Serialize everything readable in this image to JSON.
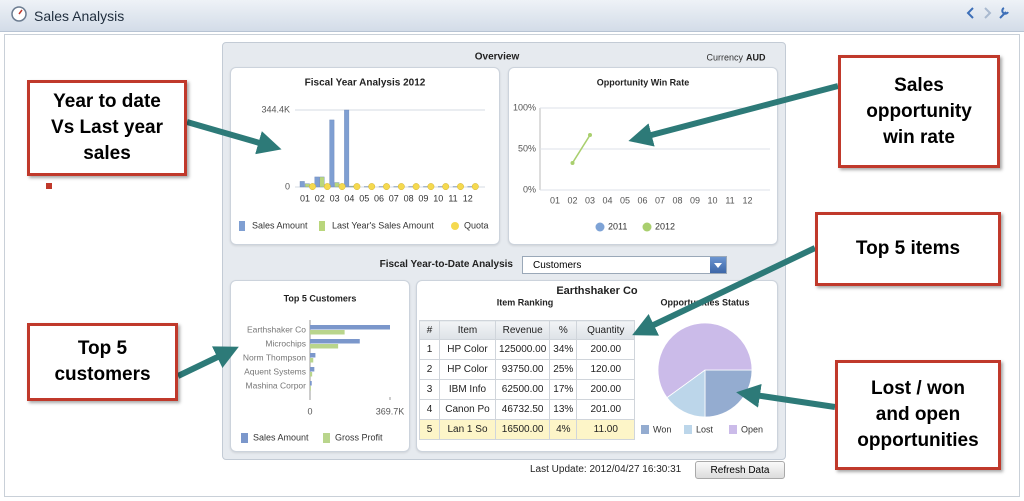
{
  "window": {
    "title": "Sales Analysis"
  },
  "overview": {
    "title": "Overview",
    "currency_label": "Currency",
    "currency": "AUD"
  },
  "fiscal_chart": {
    "type": "bar",
    "title": "Fiscal Year Analysis 2012",
    "categories": [
      "01",
      "02",
      "03",
      "04",
      "05",
      "06",
      "07",
      "08",
      "09",
      "10",
      "11",
      "12"
    ],
    "series": [
      {
        "name": "Sales Amount",
        "color": "#7f9fd2",
        "kind": "bar",
        "values": [
          25000,
          45000,
          300000,
          344400,
          0,
          0,
          0,
          0,
          0,
          0,
          0,
          0
        ]
      },
      {
        "name": "Last Year's Sales Amount",
        "color": "#b9d67c",
        "kind": "bar",
        "values": [
          15000,
          45000,
          20000,
          4000,
          2000,
          2000,
          2000,
          2000,
          2000,
          2000,
          2000,
          2000
        ]
      },
      {
        "name": "Quota",
        "color": "#f5d94e",
        "kind": "point",
        "values": [
          2000,
          2000,
          2000,
          2000,
          2000,
          2000,
          2000,
          2000,
          2000,
          2000,
          2000,
          2000
        ]
      }
    ],
    "ylim": [
      0,
      344400
    ],
    "yticks": [
      0,
      {
        "value": 344400,
        "label": "344.4K"
      }
    ],
    "grid": true
  },
  "win_rate_chart": {
    "type": "line",
    "title": "Opportunity Win Rate",
    "categories": [
      "01",
      "02",
      "03",
      "04",
      "05",
      "06",
      "07",
      "08",
      "09",
      "10",
      "11",
      "12"
    ],
    "series": [
      {
        "name": "2011",
        "color": "#7ea3d6",
        "values": [
          null,
          null,
          null,
          null,
          null,
          null,
          null,
          null,
          null,
          null,
          null,
          null
        ]
      },
      {
        "name": "2012",
        "color": "#a9cf6e",
        "values": [
          null,
          33,
          67,
          null,
          null,
          null,
          null,
          null,
          null,
          null,
          null,
          null
        ]
      }
    ],
    "ylim": [
      0,
      100
    ],
    "yticks": [
      {
        "value": 0,
        "label": "0%"
      },
      {
        "value": 50,
        "label": "50%"
      },
      {
        "value": 100,
        "label": "100%"
      }
    ],
    "grid": true
  },
  "analysis_selector": {
    "label": "Fiscal Year-to-Date Analysis",
    "value": "Customers"
  },
  "customers_chart": {
    "type": "bar",
    "orientation": "horizontal",
    "title": "Top 5 Customers",
    "categories": [
      "Earthshaker Co",
      "Microchips",
      "Norm Thompson",
      "Aquent Systems",
      "Mashina Corpor"
    ],
    "series": [
      {
        "name": "Sales Amount",
        "color": "#7b97cb",
        "values": [
          369700,
          230000,
          25000,
          20000,
          8000
        ]
      },
      {
        "name": "Gross Profit",
        "color": "#b9d58c",
        "values": [
          160000,
          130000,
          15000,
          10000,
          4000
        ]
      }
    ],
    "xlim": [
      0,
      369700
    ],
    "xticks": [
      0,
      {
        "value": 369700,
        "label": "369.7K"
      }
    ]
  },
  "customer_detail": {
    "title": "Earthshaker Co",
    "item_ranking": {
      "title": "Item Ranking",
      "columns": [
        "#",
        "Item",
        "Revenue",
        "%",
        "Quantity"
      ],
      "rows": [
        [
          "1",
          "HP Color",
          "125000.00",
          "34%",
          "200.00"
        ],
        [
          "2",
          "HP Color",
          "93750.00",
          "25%",
          "120.00"
        ],
        [
          "3",
          "IBM Info",
          "62500.00",
          "17%",
          "200.00"
        ],
        [
          "4",
          "Canon Po",
          "46732.50",
          "13%",
          "201.00"
        ],
        [
          "5",
          "Lan 1 So",
          "16500.00",
          "4%",
          "11.00"
        ]
      ],
      "selected_row": 4
    },
    "status_chart": {
      "type": "pie",
      "title": "Opportunities Status",
      "categories": [
        "Won",
        "Lost",
        "Open"
      ],
      "colors": [
        "#94acd0",
        "#bcd6ea",
        "#cbbbe9"
      ],
      "values": [
        25,
        15,
        60
      ]
    }
  },
  "footer": {
    "last_update": "Last Update: 2012/04/27 16:30:31",
    "refresh_button": "Refresh Data"
  },
  "callouts": [
    {
      "lines": [
        "Year to date",
        "Vs Last year",
        "sales"
      ]
    },
    {
      "lines": [
        "Sales",
        "opportunity",
        "win rate"
      ]
    },
    {
      "lines": [
        "Top 5 items"
      ]
    },
    {
      "lines": [
        "Top 5",
        "customers"
      ]
    },
    {
      "lines": [
        "Lost / won",
        "and open",
        "opportunities"
      ]
    }
  ]
}
